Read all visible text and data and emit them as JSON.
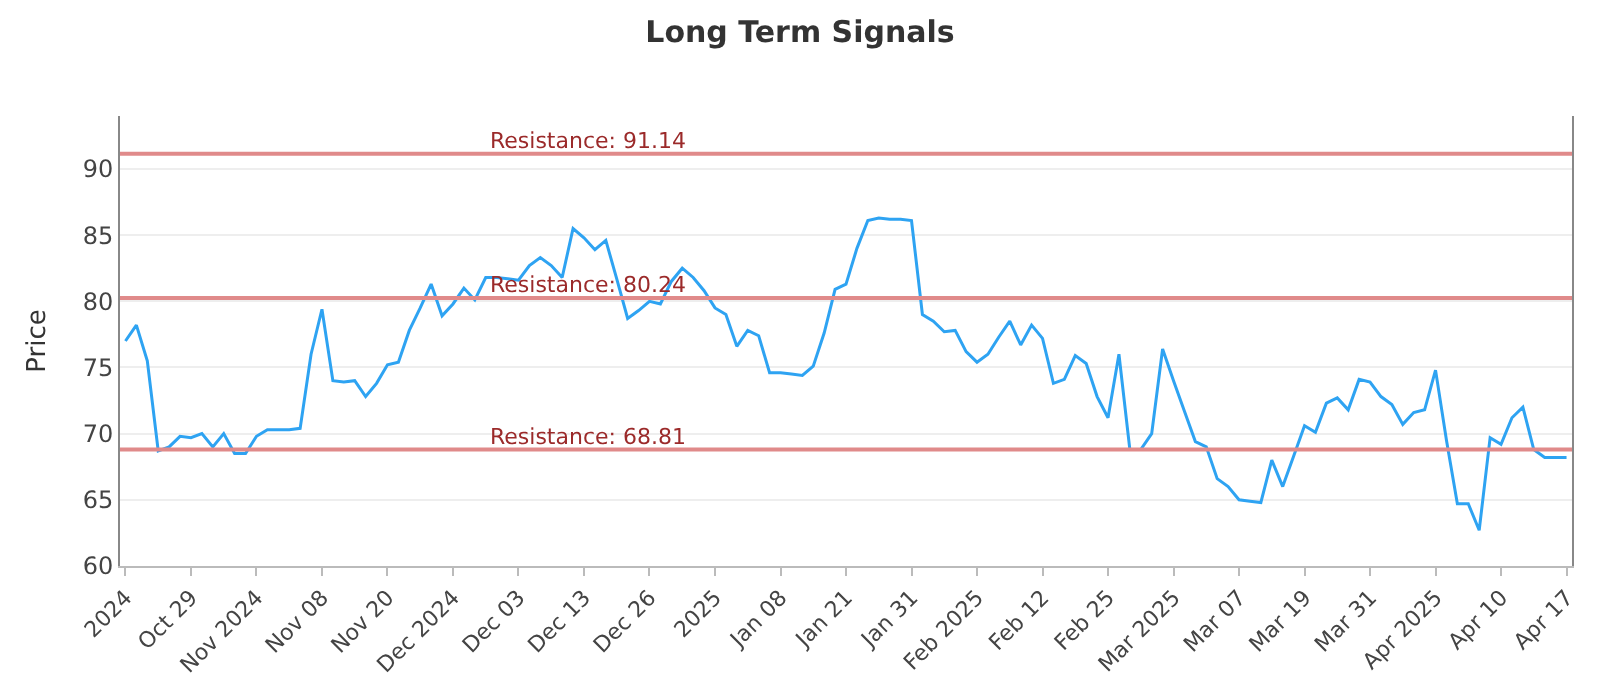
{
  "chart_data": {
    "type": "line",
    "title": "Long Term Signals",
    "ylabel": "Price",
    "categories": [
      "2024",
      null,
      null,
      null,
      null,
      null,
      "Oct 29",
      null,
      null,
      null,
      null,
      null,
      "Nov 2024",
      null,
      null,
      null,
      null,
      null,
      "Nov 08",
      null,
      null,
      null,
      null,
      null,
      "Nov 20",
      null,
      null,
      null,
      null,
      null,
      "Dec 2024",
      null,
      null,
      null,
      null,
      null,
      "Dec 03",
      null,
      null,
      null,
      null,
      null,
      "Dec 13",
      null,
      null,
      null,
      null,
      null,
      "Dec 26",
      null,
      null,
      null,
      null,
      null,
      "2025",
      null,
      null,
      null,
      null,
      null,
      "Jan 08",
      null,
      null,
      null,
      null,
      null,
      "Jan 21",
      null,
      null,
      null,
      null,
      null,
      "Jan 31",
      null,
      null,
      null,
      null,
      null,
      "Feb 2025",
      null,
      null,
      null,
      null,
      null,
      "Feb 12",
      null,
      null,
      null,
      null,
      null,
      "Feb 25",
      null,
      null,
      null,
      null,
      null,
      "Mar 2025",
      null,
      null,
      null,
      null,
      null,
      "Mar 07",
      null,
      null,
      null,
      null,
      null,
      "Mar 19",
      null,
      null,
      null,
      null,
      null,
      "Mar 31",
      null,
      null,
      null,
      null,
      null,
      "Apr 2025",
      null,
      null,
      null,
      null,
      null,
      "Apr 10",
      null,
      null,
      null,
      null,
      null,
      "Apr 17"
    ],
    "series": [
      {
        "color": "#2ea3f2",
        "values": [
          77,
          78.2,
          75.5,
          68.7,
          69,
          69.8,
          69.7,
          70,
          69,
          70,
          68.5,
          68.5,
          69.8,
          70.3,
          70.3,
          70.3,
          70.4,
          76,
          79.4,
          74,
          73.9,
          74,
          72.8,
          73.8,
          75.2,
          75.4,
          77.8,
          79.5,
          81.3,
          78.9,
          79.8,
          81,
          80.1,
          81.8,
          81.8,
          81.7,
          81.6,
          82.7,
          83.3,
          82.7,
          81.8,
          85.5,
          84.8,
          83.9,
          84.6,
          81.7,
          78.7,
          79.3,
          80,
          79.8,
          81.5,
          82.5,
          81.8,
          80.8,
          79.5,
          79,
          76.6,
          77.8,
          77.4,
          74.6,
          74.6,
          74.5,
          74.4,
          75.1,
          77.6,
          80.9,
          81.3,
          84,
          86.1,
          86.3,
          86.2,
          86.2,
          86.1,
          79,
          78.5,
          77.7,
          77.8,
          76.2,
          75.4,
          76,
          77.3,
          78.5,
          76.7,
          78.2,
          77.2,
          73.8,
          74.1,
          75.9,
          75.3,
          72.8,
          71.2,
          76,
          68.8,
          68.8,
          70,
          76.4,
          74,
          71.7,
          69.4,
          69,
          66.6,
          66,
          65,
          64.9,
          64.8,
          68,
          66,
          68.3,
          70.6,
          70.1,
          72.3,
          72.7,
          71.8,
          74.1,
          73.9,
          72.8,
          72.2,
          70.7,
          71.6,
          71.8,
          74.8,
          69.5,
          64.7,
          64.7,
          62.7,
          69.7,
          69.2,
          71.2,
          72,
          68.8,
          68.2,
          68.2,
          68.2
        ]
      }
    ],
    "ylim": [
      60,
      94
    ],
    "yticks": [
      60,
      65,
      70,
      75,
      80,
      85,
      90
    ],
    "grid": "y",
    "marker": "none",
    "line_style": "solid",
    "ref_lines": [
      {
        "axis": "y",
        "value": 91.14,
        "label": "Resistance: 91.14",
        "color": "#e08a8a"
      },
      {
        "axis": "y",
        "value": 80.24,
        "label": "Resistance: 80.24",
        "color": "#e08a8a"
      },
      {
        "axis": "y",
        "value": 68.81,
        "label": "Resistance: 68.81",
        "color": "#e08a8a"
      }
    ]
  }
}
